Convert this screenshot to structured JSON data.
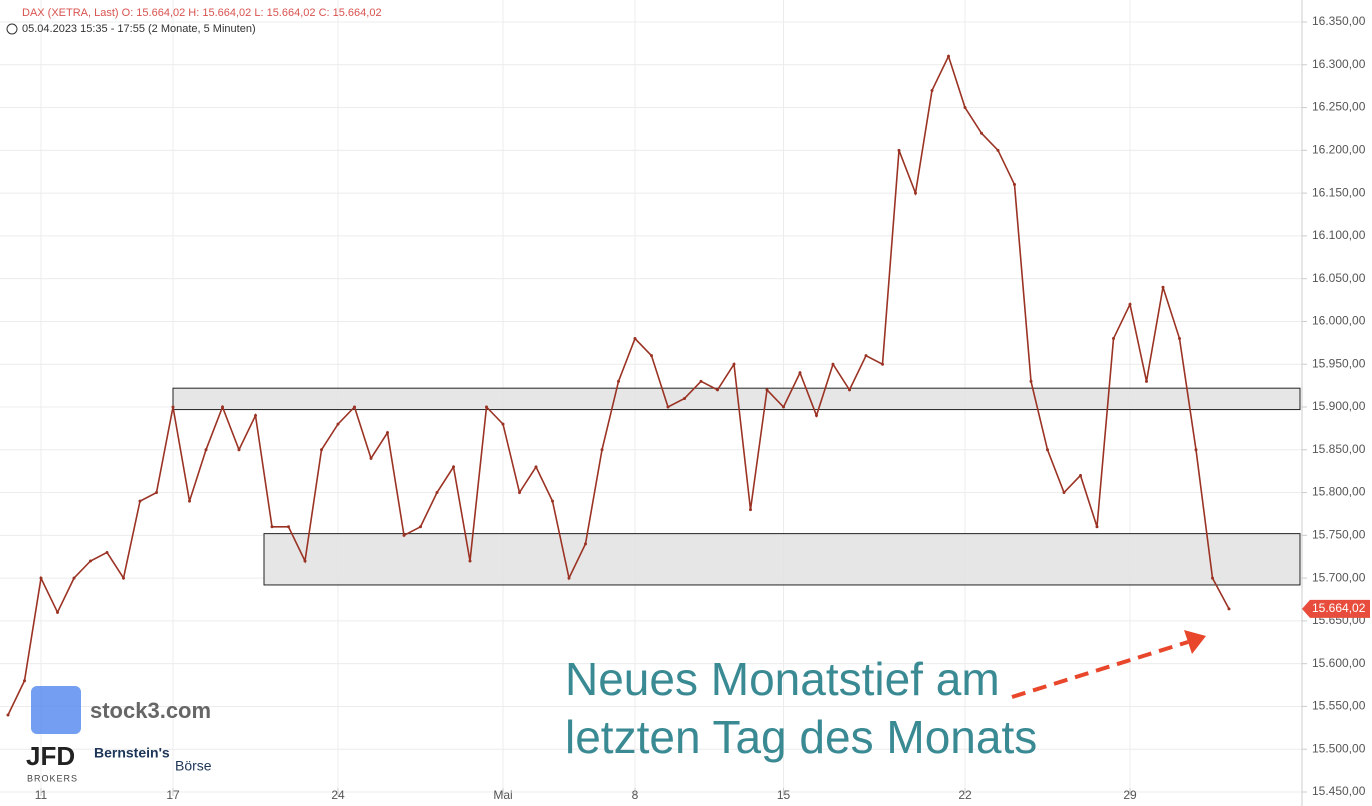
{
  "chart_data": {
    "type": "line",
    "header": "DAX (XETRA, Last)  O: 15.664,02  H: 15.664,02  L: 15.664,02  C: 15.664,02",
    "subheader": "05.04.2023 15:35 - 17:55   (2 Monate, 5 Minuten)",
    "annotation": [
      "Neues Monatstief am",
      "letzten Tag des Monats"
    ],
    "logos": [
      "stock3.com",
      "JFD",
      "BROKERS",
      "Bernstein's",
      "Börse"
    ],
    "categories": [
      null,
      null,
      "11",
      null,
      null,
      null,
      null,
      null,
      null,
      null,
      "17",
      null,
      null,
      null,
      null,
      null,
      null,
      null,
      null,
      null,
      "24",
      null,
      null,
      null,
      null,
      null,
      null,
      null,
      null,
      null,
      "Mai",
      null,
      null,
      null,
      null,
      null,
      null,
      null,
      "8",
      null,
      null,
      null,
      null,
      null,
      null,
      null,
      null,
      "15",
      null,
      null,
      null,
      null,
      null,
      null,
      null,
      null,
      null,
      null,
      "22",
      null,
      null,
      null,
      null,
      null,
      null,
      null,
      null,
      null,
      "29",
      null,
      null,
      null,
      null,
      null,
      null
    ],
    "values": [
      15540,
      15580,
      15700,
      15660,
      15700,
      15720,
      15730,
      15700,
      15790,
      15800,
      15900,
      15790,
      15850,
      15900,
      15850,
      15890,
      15760,
      15760,
      15720,
      15850,
      15880,
      15900,
      15840,
      15870,
      15750,
      15760,
      15800,
      15830,
      15720,
      15900,
      15880,
      15800,
      15830,
      15790,
      15700,
      15740,
      15850,
      15930,
      15980,
      15960,
      15900,
      15910,
      15930,
      15920,
      15950,
      15780,
      15920,
      15900,
      15940,
      15890,
      15950,
      15920,
      15960,
      15950,
      16200,
      16150,
      16270,
      16310,
      16250,
      16220,
      16200,
      16160,
      15930,
      15850,
      15800,
      15820,
      15760,
      15980,
      16020,
      15930,
      16040,
      15980,
      15850,
      15700,
      15664
    ],
    "value_labels": [
      null,
      null,
      null,
      null,
      null,
      null,
      null,
      null,
      null,
      null,
      null,
      null,
      null,
      null,
      null,
      null,
      null,
      null,
      null,
      null,
      null,
      null,
      null,
      null,
      null,
      null,
      null,
      null,
      null,
      null,
      null,
      null,
      null,
      null,
      null,
      null,
      null,
      null,
      null,
      null,
      null,
      null,
      null,
      null,
      null,
      null,
      null,
      null,
      null,
      null,
      null,
      null,
      null,
      null,
      null,
      null,
      null,
      null,
      null,
      null,
      null,
      null,
      null,
      null,
      null,
      null,
      null,
      null,
      null,
      null,
      null,
      null,
      null,
      null,
      "15.664,02"
    ],
    "color": "#9b3324",
    "zones": [
      {
        "low": 15897,
        "high": 15922
      },
      {
        "low": 15692,
        "high": 15752
      }
    ],
    "ylim": [
      15450,
      16350
    ],
    "yticks": [
      {
        "value": 15450,
        "label": "15.450,00"
      },
      {
        "value": 15500,
        "label": "15.500,00"
      },
      {
        "value": 15550,
        "label": "15.550,00"
      },
      {
        "value": 15600,
        "label": "15.600,00"
      },
      {
        "value": 15650,
        "label": "15.650,00"
      },
      {
        "value": 15700,
        "label": "15.700,00"
      },
      {
        "value": 15750,
        "label": "15.750,00"
      },
      {
        "value": 15800,
        "label": "15.800,00"
      },
      {
        "value": 15850,
        "label": "15.850,00"
      },
      {
        "value": 15900,
        "label": "15.900,00"
      },
      {
        "value": 15950,
        "label": "15.950,00"
      },
      {
        "value": 16000,
        "label": "16.000,00"
      },
      {
        "value": 16050,
        "label": "16.050,00"
      },
      {
        "value": 16100,
        "label": "16.100,00"
      },
      {
        "value": 16150,
        "label": "16.150,00"
      },
      {
        "value": 16200,
        "label": "16.200,00"
      },
      {
        "value": 16250,
        "label": "16.250,00"
      },
      {
        "value": 16300,
        "label": "16.300,00"
      },
      {
        "value": 16350,
        "label": "16.350,00"
      }
    ],
    "grid": true
  }
}
